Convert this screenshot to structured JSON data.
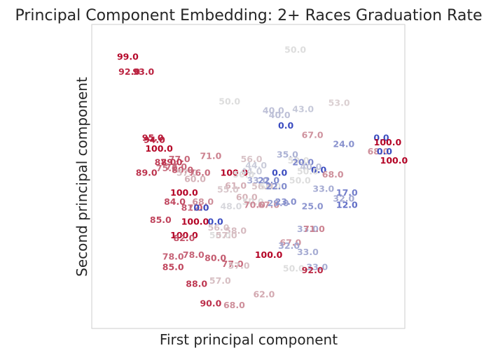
{
  "chart_data": {
    "type": "scatter",
    "title": "Principal Component Embedding: 2+ Races Graduation Rate",
    "xlabel": "First principal component",
    "ylabel": "Second principal component",
    "grid": false,
    "legend": "none",
    "xlim": [
      0,
      100
    ],
    "ylim": [
      0,
      100
    ],
    "color_scale": {
      "name": "coolwarm",
      "min": 0,
      "max": 100,
      "low": "#3b4cc0",
      "mid": "#dddddd",
      "high": "#b40426"
    },
    "points": [
      {
        "x": 11.5,
        "y": 89.2,
        "label": "99.0"
      },
      {
        "x": 12.0,
        "y": 84.2,
        "label": "92.0"
      },
      {
        "x": 16.5,
        "y": 84.2,
        "label": "93.0"
      },
      {
        "x": 65.0,
        "y": 91.5,
        "label": "50.0"
      },
      {
        "x": 44.0,
        "y": 74.5,
        "label": "50.0"
      },
      {
        "x": 58.0,
        "y": 71.5,
        "label": "40.0"
      },
      {
        "x": 67.5,
        "y": 72.0,
        "label": "43.0"
      },
      {
        "x": 79.0,
        "y": 74.0,
        "label": "53.0"
      },
      {
        "x": 60.0,
        "y": 70.0,
        "label": "40.0"
      },
      {
        "x": 62.0,
        "y": 66.5,
        "label": "0.0"
      },
      {
        "x": 70.5,
        "y": 63.5,
        "label": "67.0"
      },
      {
        "x": 80.5,
        "y": 60.5,
        "label": "24.0"
      },
      {
        "x": 92.5,
        "y": 62.5,
        "label": "0.0"
      },
      {
        "x": 94.5,
        "y": 61.0,
        "label": "100.0"
      },
      {
        "x": 91.5,
        "y": 58.0,
        "label": "68.0"
      },
      {
        "x": 93.5,
        "y": 58.0,
        "label": "0.0"
      },
      {
        "x": 96.5,
        "y": 55.0,
        "label": "100.0"
      },
      {
        "x": 19.5,
        "y": 62.5,
        "label": "95.0"
      },
      {
        "x": 20.0,
        "y": 61.8,
        "label": "94.0"
      },
      {
        "x": 21.5,
        "y": 59.0,
        "label": "100.0"
      },
      {
        "x": 28.0,
        "y": 55.5,
        "label": "77.0"
      },
      {
        "x": 23.5,
        "y": 54.5,
        "label": "87.0"
      },
      {
        "x": 25.5,
        "y": 54.5,
        "label": "89.0"
      },
      {
        "x": 27.0,
        "y": 53.0,
        "label": "77.0"
      },
      {
        "x": 24.0,
        "y": 52.5,
        "label": "75.0"
      },
      {
        "x": 29.0,
        "y": 52.0,
        "label": "80.0"
      },
      {
        "x": 17.5,
        "y": 51.0,
        "label": "89.0"
      },
      {
        "x": 30.5,
        "y": 51.0,
        "label": "57.0"
      },
      {
        "x": 34.5,
        "y": 51.0,
        "label": "76.0"
      },
      {
        "x": 33.0,
        "y": 49.0,
        "label": "60.0"
      },
      {
        "x": 38.0,
        "y": 56.5,
        "label": "71.0"
      },
      {
        "x": 51.0,
        "y": 55.5,
        "label": "56.0"
      },
      {
        "x": 62.5,
        "y": 57.0,
        "label": "35.0"
      },
      {
        "x": 66.0,
        "y": 55.0,
        "label": "50.0"
      },
      {
        "x": 67.5,
        "y": 54.5,
        "label": "20.0"
      },
      {
        "x": 70.0,
        "y": 53.0,
        "label": "40.0"
      },
      {
        "x": 72.5,
        "y": 52.0,
        "label": "0.0"
      },
      {
        "x": 69.0,
        "y": 51.5,
        "label": "50.0"
      },
      {
        "x": 77.0,
        "y": 50.5,
        "label": "68.0"
      },
      {
        "x": 52.5,
        "y": 53.5,
        "label": "44.0"
      },
      {
        "x": 45.5,
        "y": 51.0,
        "label": "100.0"
      },
      {
        "x": 51.0,
        "y": 51.5,
        "label": "44.0"
      },
      {
        "x": 48.5,
        "y": 50.5,
        "label": "50.0"
      },
      {
        "x": 60.0,
        "y": 51.0,
        "label": "0.0"
      },
      {
        "x": 66.5,
        "y": 48.5,
        "label": "50.0"
      },
      {
        "x": 53.0,
        "y": 48.5,
        "label": "33.0"
      },
      {
        "x": 56.5,
        "y": 48.5,
        "label": "22.0"
      },
      {
        "x": 54.5,
        "y": 46.5,
        "label": "56.0"
      },
      {
        "x": 57.0,
        "y": 46.5,
        "label": "50.0"
      },
      {
        "x": 59.0,
        "y": 46.5,
        "label": "22.0"
      },
      {
        "x": 46.0,
        "y": 46.8,
        "label": "61.0"
      },
      {
        "x": 43.5,
        "y": 45.5,
        "label": "55.0"
      },
      {
        "x": 74.0,
        "y": 45.8,
        "label": "33.0"
      },
      {
        "x": 81.5,
        "y": 44.5,
        "label": "17.0"
      },
      {
        "x": 80.5,
        "y": 42.5,
        "label": "32.0"
      },
      {
        "x": 81.5,
        "y": 40.5,
        "label": "12.0"
      },
      {
        "x": 29.5,
        "y": 44.5,
        "label": "100.0"
      },
      {
        "x": 49.5,
        "y": 43.0,
        "label": "60.0"
      },
      {
        "x": 51.5,
        "y": 41.5,
        "label": "50.0"
      },
      {
        "x": 26.5,
        "y": 41.5,
        "label": "84.0"
      },
      {
        "x": 35.5,
        "y": 41.5,
        "label": "68.0"
      },
      {
        "x": 52.0,
        "y": 40.5,
        "label": "70.0"
      },
      {
        "x": 56.5,
        "y": 40.5,
        "label": "67.0"
      },
      {
        "x": 59.5,
        "y": 41.0,
        "label": "29.0"
      },
      {
        "x": 62.0,
        "y": 41.5,
        "label": "23.0"
      },
      {
        "x": 70.5,
        "y": 40.0,
        "label": "25.0"
      },
      {
        "x": 44.5,
        "y": 40.0,
        "label": "48.0"
      },
      {
        "x": 32.0,
        "y": 39.5,
        "label": "81.0"
      },
      {
        "x": 34.0,
        "y": 39.5,
        "label": "72.0"
      },
      {
        "x": 35.0,
        "y": 39.5,
        "label": "0.0"
      },
      {
        "x": 22.0,
        "y": 35.5,
        "label": "85.0"
      },
      {
        "x": 33.0,
        "y": 35.0,
        "label": "100.0"
      },
      {
        "x": 39.5,
        "y": 35.0,
        "label": "0.0"
      },
      {
        "x": 40.5,
        "y": 33.0,
        "label": "56.0"
      },
      {
        "x": 46.0,
        "y": 32.0,
        "label": "58.0"
      },
      {
        "x": 69.0,
        "y": 32.5,
        "label": "33.0"
      },
      {
        "x": 71.0,
        "y": 32.5,
        "label": "71.0"
      },
      {
        "x": 29.5,
        "y": 30.5,
        "label": "100.0"
      },
      {
        "x": 29.5,
        "y": 29.5,
        "label": "82.0"
      },
      {
        "x": 41.0,
        "y": 30.5,
        "label": "50.0"
      },
      {
        "x": 43.0,
        "y": 30.5,
        "label": "57.0"
      },
      {
        "x": 63.5,
        "y": 28.0,
        "label": "67.0"
      },
      {
        "x": 63.0,
        "y": 27.0,
        "label": "32.0"
      },
      {
        "x": 69.0,
        "y": 25.0,
        "label": "33.0"
      },
      {
        "x": 56.5,
        "y": 24.0,
        "label": "100.0"
      },
      {
        "x": 26.0,
        "y": 23.5,
        "label": "78.0"
      },
      {
        "x": 32.5,
        "y": 24.0,
        "label": "78.0"
      },
      {
        "x": 39.5,
        "y": 23.0,
        "label": "80.0"
      },
      {
        "x": 45.0,
        "y": 21.0,
        "label": "77.0"
      },
      {
        "x": 47.0,
        "y": 20.5,
        "label": "57.0"
      },
      {
        "x": 26.0,
        "y": 20.0,
        "label": "85.0"
      },
      {
        "x": 64.5,
        "y": 19.5,
        "label": "50.0"
      },
      {
        "x": 72.0,
        "y": 20.0,
        "label": "33.0"
      },
      {
        "x": 70.5,
        "y": 19.0,
        "label": "92.0"
      },
      {
        "x": 41.0,
        "y": 15.5,
        "label": "57.0"
      },
      {
        "x": 33.5,
        "y": 14.5,
        "label": "88.0"
      },
      {
        "x": 55.0,
        "y": 11.0,
        "label": "62.0"
      },
      {
        "x": 38.0,
        "y": 8.0,
        "label": "90.0"
      },
      {
        "x": 45.5,
        "y": 7.5,
        "label": "68.0"
      }
    ]
  }
}
